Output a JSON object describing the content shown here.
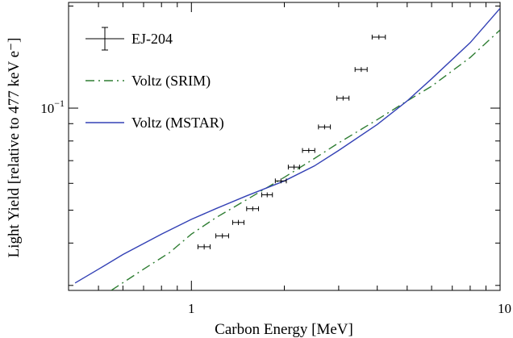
{
  "chart_data": {
    "type": "scatter",
    "xlabel": "Carbon Energy [MeV]",
    "ylabel": "Light Yield [relative to 477 keV e⁻]",
    "xscale": "log",
    "yscale": "log",
    "xlim": [
      0.4,
      10
    ],
    "ylim": [
      0.029,
      0.205
    ],
    "x_tick_labels": [
      {
        "value": 1,
        "label": "1"
      },
      {
        "value": 10,
        "label": "10"
      }
    ],
    "y_tick_labels": [
      {
        "value": 0.1,
        "base": "10",
        "exp": "−1"
      }
    ],
    "legend_position": "top-left",
    "series": [
      {
        "name": "EJ-204",
        "style": "points-with-errorbars",
        "color": "#000000",
        "points": [
          {
            "x": 1.1,
            "y": 0.039,
            "xerr": 0.05,
            "yerr": 0.0007
          },
          {
            "x": 1.26,
            "y": 0.042,
            "xerr": 0.06,
            "yerr": 0.0007
          },
          {
            "x": 1.42,
            "y": 0.046,
            "xerr": 0.06,
            "yerr": 0.0008
          },
          {
            "x": 1.58,
            "y": 0.0505,
            "xerr": 0.07,
            "yerr": 0.0008
          },
          {
            "x": 1.76,
            "y": 0.0555,
            "xerr": 0.07,
            "yerr": 0.0009
          },
          {
            "x": 1.95,
            "y": 0.061,
            "xerr": 0.08,
            "yerr": 0.001
          },
          {
            "x": 2.15,
            "y": 0.067,
            "xerr": 0.09,
            "yerr": 0.0011
          },
          {
            "x": 2.4,
            "y": 0.075,
            "xerr": 0.11,
            "yerr": 0.0012
          },
          {
            "x": 2.7,
            "y": 0.088,
            "xerr": 0.12,
            "yerr": 0.0014
          },
          {
            "x": 3.1,
            "y": 0.107,
            "xerr": 0.14,
            "yerr": 0.0017
          },
          {
            "x": 3.55,
            "y": 0.13,
            "xerr": 0.16,
            "yerr": 0.0021
          },
          {
            "x": 4.05,
            "y": 0.162,
            "xerr": 0.2,
            "yerr": 0.0026
          }
        ]
      },
      {
        "name": "Voltz (SRIM)",
        "style": "line",
        "dash": "dash-dot",
        "color": "#2e7d32",
        "x": [
          0.55,
          0.7,
          0.85,
          1.0,
          1.2,
          1.5,
          2.0,
          2.5,
          3.0,
          4.0,
          5.0,
          6.0,
          8.0,
          10.0
        ],
        "y": [
          0.029,
          0.0335,
          0.0375,
          0.0425,
          0.0475,
          0.0535,
          0.0625,
          0.071,
          0.079,
          0.0925,
          0.105,
          0.116,
          0.141,
          0.17
        ]
      },
      {
        "name": "Voltz (MSTAR)",
        "style": "line",
        "dash": "solid",
        "color": "#3341b5",
        "x": [
          0.42,
          0.5,
          0.6,
          0.8,
          1.0,
          1.2,
          1.5,
          2.0,
          2.5,
          3.0,
          4.0,
          5.0,
          6.0,
          8.0,
          10.0
        ],
        "y": [
          0.0305,
          0.0335,
          0.037,
          0.0425,
          0.047,
          0.0505,
          0.055,
          0.061,
          0.0675,
          0.075,
          0.0895,
          0.105,
          0.122,
          0.156,
          0.197
        ]
      }
    ]
  }
}
